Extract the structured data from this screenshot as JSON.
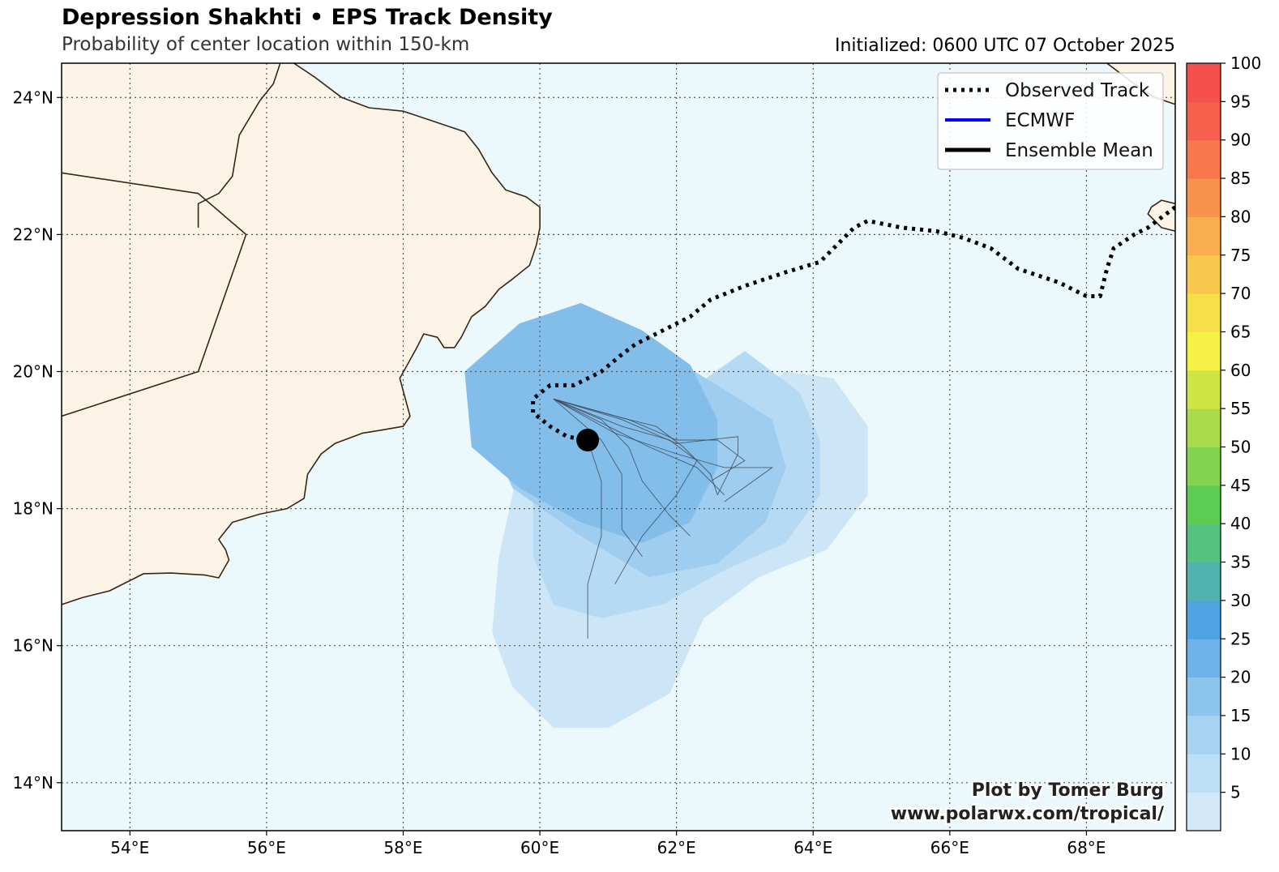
{
  "header": {
    "title": "Depression Shakhti • EPS Track Density",
    "subtitle": "Probability of center location within 150-km",
    "initialized": "Initialized: 0600 UTC 07 October 2025"
  },
  "map": {
    "lon_range": [
      53.0,
      69.3
    ],
    "lat_range": [
      13.3,
      24.5
    ],
    "lon_ticks": [
      {
        "value": 54,
        "label": "54°E"
      },
      {
        "value": 56,
        "label": "56°E"
      },
      {
        "value": 58,
        "label": "58°E"
      },
      {
        "value": 60,
        "label": "60°E"
      },
      {
        "value": 62,
        "label": "62°E"
      },
      {
        "value": 64,
        "label": "64°E"
      },
      {
        "value": 66,
        "label": "66°E"
      },
      {
        "value": 68,
        "label": "68°E"
      }
    ],
    "lat_ticks": [
      {
        "value": 14,
        "label": "14°N"
      },
      {
        "value": 16,
        "label": "16°N"
      },
      {
        "value": 18,
        "label": "18°N"
      },
      {
        "value": 20,
        "label": "20°N"
      },
      {
        "value": 22,
        "label": "22°N"
      },
      {
        "value": 24,
        "label": "24°N"
      }
    ],
    "colors": {
      "ocean": "#ebf9fc",
      "land": "#fbf4e7",
      "coast": "#3a2510",
      "grid": "#555555",
      "density_5": "#cde6f7",
      "density_10": "#b6daf4",
      "density_15": "#9ecdf0",
      "density_20": "#83bdea",
      "observed_track": "#000000",
      "current_position": "#000000",
      "member_tracks": "#3c4a5a"
    },
    "current_position": {
      "lon": 60.7,
      "lat": 19.0
    },
    "observed_track": [
      [
        69.3,
        22.4
      ],
      [
        68.9,
        22.1
      ],
      [
        68.7,
        22.0
      ],
      [
        68.4,
        21.8
      ],
      [
        68.3,
        21.5
      ],
      [
        68.2,
        21.1
      ],
      [
        68.0,
        21.1
      ],
      [
        67.6,
        21.3
      ],
      [
        67.0,
        21.5
      ],
      [
        66.6,
        21.8
      ],
      [
        66.2,
        21.95
      ],
      [
        65.8,
        22.05
      ],
      [
        65.3,
        22.1
      ],
      [
        64.8,
        22.2
      ],
      [
        64.6,
        22.1
      ],
      [
        64.1,
        21.6
      ],
      [
        63.6,
        21.45
      ],
      [
        63.0,
        21.25
      ],
      [
        62.5,
        21.05
      ],
      [
        62.2,
        20.8
      ],
      [
        61.8,
        20.6
      ],
      [
        61.4,
        20.4
      ],
      [
        61.2,
        20.25
      ],
      [
        60.9,
        20.0
      ],
      [
        60.5,
        19.8
      ],
      [
        60.15,
        19.8
      ],
      [
        59.9,
        19.6
      ],
      [
        59.9,
        19.4
      ],
      [
        60.15,
        19.2
      ],
      [
        60.4,
        19.05
      ],
      [
        60.7,
        19.0
      ]
    ],
    "density_levels": [
      {
        "level": 5,
        "polygon": [
          [
            59.8,
            19.6
          ],
          [
            60.6,
            18.7
          ],
          [
            61.6,
            18.4
          ],
          [
            62.6,
            19.3
          ],
          [
            63.6,
            20.0
          ],
          [
            64.3,
            19.9
          ],
          [
            64.8,
            19.2
          ],
          [
            64.8,
            18.2
          ],
          [
            64.2,
            17.4
          ],
          [
            63.2,
            17.0
          ],
          [
            62.4,
            16.4
          ],
          [
            61.9,
            15.3
          ],
          [
            61.0,
            14.8
          ],
          [
            60.2,
            14.8
          ],
          [
            59.6,
            15.4
          ],
          [
            59.3,
            16.2
          ],
          [
            59.4,
            17.3
          ],
          [
            59.6,
            18.2
          ]
        ]
      },
      {
        "level": 10,
        "polygon": [
          [
            59.6,
            19.9
          ],
          [
            60.9,
            19.3
          ],
          [
            62.0,
            19.6
          ],
          [
            63.0,
            20.3
          ],
          [
            63.8,
            19.7
          ],
          [
            64.1,
            19.0
          ],
          [
            64.1,
            18.2
          ],
          [
            63.6,
            17.5
          ],
          [
            62.7,
            17.1
          ],
          [
            61.8,
            16.6
          ],
          [
            60.9,
            16.4
          ],
          [
            60.2,
            16.6
          ],
          [
            59.9,
            17.3
          ],
          [
            59.9,
            18.2
          ]
        ]
      },
      {
        "level": 15,
        "polygon": [
          [
            59.4,
            20.2
          ],
          [
            60.4,
            20.8
          ],
          [
            61.6,
            20.4
          ],
          [
            62.6,
            19.8
          ],
          [
            63.4,
            19.3
          ],
          [
            63.6,
            18.6
          ],
          [
            63.3,
            17.8
          ],
          [
            62.6,
            17.2
          ],
          [
            61.6,
            17.0
          ],
          [
            60.6,
            17.6
          ],
          [
            59.6,
            18.3
          ],
          [
            59.2,
            19.2
          ]
        ]
      },
      {
        "level": 20,
        "polygon": [
          [
            58.9,
            20.0
          ],
          [
            59.7,
            20.7
          ],
          [
            60.6,
            21.0
          ],
          [
            61.5,
            20.6
          ],
          [
            62.2,
            20.1
          ],
          [
            62.6,
            19.3
          ],
          [
            62.6,
            18.6
          ],
          [
            62.2,
            17.8
          ],
          [
            61.5,
            17.5
          ],
          [
            60.6,
            17.8
          ],
          [
            59.7,
            18.3
          ],
          [
            59.0,
            18.9
          ]
        ]
      }
    ],
    "member_tracks": [
      [
        [
          60.2,
          19.6
        ],
        [
          61.0,
          19.2
        ],
        [
          61.6,
          18.9
        ],
        [
          62.3,
          18.6
        ],
        [
          62.7,
          18.2
        ]
      ],
      [
        [
          60.2,
          19.6
        ],
        [
          60.9,
          19.3
        ],
        [
          61.3,
          18.9
        ],
        [
          61.5,
          18.4
        ],
        [
          61.9,
          17.9
        ],
        [
          62.2,
          17.6
        ]
      ],
      [
        [
          60.2,
          19.6
        ],
        [
          61.1,
          19.1
        ],
        [
          62.0,
          18.8
        ],
        [
          62.7,
          18.6
        ],
        [
          63.4,
          18.6
        ],
        [
          62.7,
          18.1
        ]
      ],
      [
        [
          60.2,
          19.6
        ],
        [
          61.3,
          19.3
        ],
        [
          62.0,
          19.0
        ],
        [
          62.6,
          19.0
        ],
        [
          63.0,
          18.7
        ],
        [
          62.5,
          18.4
        ]
      ],
      [
        [
          60.2,
          19.6
        ],
        [
          60.9,
          19.0
        ],
        [
          61.2,
          18.5
        ],
        [
          61.2,
          17.7
        ],
        [
          61.5,
          17.3
        ]
      ],
      [
        [
          60.7,
          19.0
        ],
        [
          60.9,
          18.4
        ],
        [
          60.9,
          17.6
        ],
        [
          60.7,
          16.9
        ],
        [
          60.7,
          16.1
        ]
      ],
      [
        [
          60.2,
          19.6
        ],
        [
          61.2,
          19.2
        ],
        [
          61.9,
          19.0
        ],
        [
          62.3,
          18.7
        ],
        [
          62.0,
          18.2
        ],
        [
          61.5,
          17.6
        ],
        [
          61.1,
          16.9
        ]
      ],
      [
        [
          60.2,
          19.6
        ],
        [
          61.1,
          19.35
        ],
        [
          61.7,
          19.2
        ],
        [
          62.1,
          18.9
        ],
        [
          62.5,
          18.5
        ],
        [
          62.6,
          18.2
        ]
      ],
      [
        [
          60.2,
          19.6
        ],
        [
          61.2,
          19.3
        ],
        [
          62.0,
          18.95
        ],
        [
          62.9,
          19.05
        ],
        [
          62.9,
          18.8
        ],
        [
          62.6,
          18.2
        ]
      ]
    ],
    "coastlines": [
      [
        [
          53.0,
          16.6
        ],
        [
          53.3,
          16.7
        ],
        [
          53.7,
          16.8
        ],
        [
          54.0,
          16.95
        ],
        [
          54.2,
          17.05
        ],
        [
          54.6,
          17.06
        ],
        [
          55.1,
          17.03
        ],
        [
          55.3,
          16.99
        ],
        [
          55.45,
          17.25
        ],
        [
          55.4,
          17.4
        ],
        [
          55.3,
          17.55
        ],
        [
          55.5,
          17.8
        ],
        [
          55.9,
          17.92
        ],
        [
          56.3,
          18.0
        ],
        [
          56.55,
          18.15
        ],
        [
          56.6,
          18.5
        ],
        [
          56.8,
          18.8
        ],
        [
          57.0,
          18.95
        ],
        [
          57.4,
          19.1
        ],
        [
          57.7,
          19.15
        ],
        [
          58.0,
          19.2
        ],
        [
          58.1,
          19.35
        ],
        [
          57.95,
          19.9
        ],
        [
          58.2,
          20.35
        ],
        [
          58.3,
          20.55
        ],
        [
          58.5,
          20.5
        ],
        [
          58.6,
          20.35
        ],
        [
          58.75,
          20.35
        ],
        [
          58.85,
          20.5
        ],
        [
          59.0,
          20.8
        ],
        [
          59.2,
          20.95
        ],
        [
          59.4,
          21.2
        ],
        [
          59.6,
          21.35
        ],
        [
          59.85,
          21.55
        ],
        [
          59.95,
          21.85
        ],
        [
          60.0,
          22.1
        ],
        [
          60.0,
          22.4
        ],
        [
          59.8,
          22.55
        ],
        [
          59.5,
          22.65
        ],
        [
          59.3,
          22.9
        ],
        [
          59.1,
          23.25
        ],
        [
          58.9,
          23.5
        ],
        [
          58.6,
          23.6
        ],
        [
          58.3,
          23.7
        ],
        [
          58.0,
          23.8
        ],
        [
          57.5,
          23.85
        ],
        [
          57.1,
          24.0
        ],
        [
          56.7,
          24.3
        ],
        [
          56.4,
          24.5
        ]
      ],
      [
        [
          56.2,
          24.5
        ],
        [
          56.1,
          24.2
        ],
        [
          55.9,
          23.95
        ],
        [
          55.6,
          23.45
        ],
        [
          55.5,
          22.85
        ],
        [
          55.3,
          22.6
        ],
        [
          55.0,
          22.45
        ],
        [
          55.0,
          22.1
        ]
      ],
      [
        [
          53.0,
          22.9
        ],
        [
          55.0,
          22.6
        ],
        [
          55.7,
          22.0
        ],
        [
          55.0,
          20.0
        ],
        [
          53.0,
          19.35
        ]
      ],
      [
        [
          68.3,
          24.5
        ],
        [
          68.7,
          24.2
        ],
        [
          69.0,
          24.0
        ],
        [
          69.3,
          23.9
        ]
      ],
      [
        [
          69.3,
          22.45
        ],
        [
          69.1,
          22.5
        ],
        [
          68.95,
          22.4
        ],
        [
          68.9,
          22.3
        ],
        [
          69.1,
          22.1
        ],
        [
          69.3,
          22.05
        ]
      ]
    ]
  },
  "legend": {
    "entries": [
      {
        "label": "Observed Track",
        "style": "dotted",
        "color": "#000000"
      },
      {
        "label": "ECMWF",
        "style": "solid",
        "color": "#0000ff"
      },
      {
        "label": "Ensemble Mean",
        "style": "solid",
        "color": "#000000"
      }
    ]
  },
  "colorbar": {
    "tick_labels": [
      "5",
      "10",
      "15",
      "20",
      "25",
      "30",
      "35",
      "40",
      "45",
      "50",
      "55",
      "60",
      "65",
      "70",
      "75",
      "80",
      "85",
      "90",
      "95",
      "100"
    ],
    "colors": [
      "#d3e8f8",
      "#bddff5",
      "#a7d3f2",
      "#8cc4ee",
      "#6db2e8",
      "#4fa3e2",
      "#52b2b0",
      "#55c280",
      "#5ccd52",
      "#82d44e",
      "#a9dc4a",
      "#cfe545",
      "#f5f245",
      "#f7df4a",
      "#f8c84d",
      "#f8ad4e",
      "#f8934e",
      "#f8774d",
      "#f65f4b",
      "#f44f4a"
    ]
  },
  "credits": {
    "line1": "Plot by Tomer Burg",
    "line2": "www.polarwx.com/tropical/"
  }
}
